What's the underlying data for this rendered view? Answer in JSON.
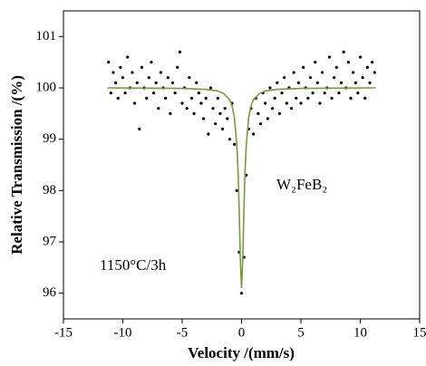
{
  "chart_data": {
    "type": "scatter",
    "xlabel": "Velocity /(mm/s)",
    "ylabel": "Relative Transmission /(%)",
    "xlim": [
      -15,
      15
    ],
    "xticks": [
      -15,
      -10,
      -5,
      0,
      5,
      10,
      15
    ],
    "ylim": [
      95.5,
      101.5
    ],
    "yticks": [
      96,
      97,
      98,
      99,
      100,
      101
    ],
    "annotations": [
      "W₂FeB₂",
      "1150°C/3h"
    ],
    "series": [
      {
        "mode": "markers",
        "color": "#000000",
        "x": [
          -11.2,
          -11,
          -10.8,
          -10.6,
          -10.4,
          -10.2,
          -10,
          -9.8,
          -9.6,
          -9.4,
          -9.2,
          -9,
          -8.8,
          -8.6,
          -8.4,
          -8.2,
          -8,
          -7.8,
          -7.6,
          -7.4,
          -7.2,
          -7,
          -6.8,
          -6.6,
          -6.4,
          -6.2,
          -6,
          -5.8,
          -5.6,
          -5.4,
          -5.2,
          -5,
          -4.8,
          -4.6,
          -4.4,
          -4.2,
          -4,
          -3.8,
          -3.6,
          -3.4,
          -3.2,
          -3,
          -2.8,
          -2.6,
          -2.4,
          -2.2,
          -2,
          -1.8,
          -1.6,
          -1.4,
          -1.2,
          -1,
          -0.8,
          -0.6,
          -0.4,
          -0.2,
          0,
          0.2,
          0.4,
          0.6,
          0.8,
          1,
          1.2,
          1.4,
          1.6,
          1.8,
          2,
          2.2,
          2.4,
          2.6,
          2.8,
          3,
          3.2,
          3.4,
          3.6,
          3.8,
          4,
          4.2,
          4.4,
          4.6,
          4.8,
          5,
          5.2,
          5.4,
          5.6,
          5.8,
          6,
          6.2,
          6.4,
          6.6,
          6.8,
          7,
          7.2,
          7.4,
          7.6,
          7.8,
          8,
          8.2,
          8.4,
          8.6,
          8.8,
          9,
          9.2,
          9.4,
          9.6,
          9.8,
          10,
          10.2,
          10.4,
          10.6,
          10.8,
          11,
          11.2
        ],
        "values": [
          100.5,
          99.9,
          100.3,
          100.1,
          99.8,
          100.4,
          100.2,
          99.9,
          100.6,
          100.0,
          100.3,
          99.7,
          100.1,
          99.2,
          100.4,
          100.0,
          99.8,
          100.2,
          100.5,
          99.9,
          100.1,
          99.6,
          100.3,
          100.0,
          99.8,
          100.2,
          99.5,
          100.1,
          99.9,
          100.4,
          100.7,
          99.7,
          100.0,
          99.6,
          100.2,
          99.8,
          99.5,
          100.1,
          99.9,
          99.7,
          99.4,
          99.8,
          99.1,
          100.0,
          99.6,
          99.3,
          99.8,
          99.5,
          99.2,
          99.6,
          99.4,
          99.0,
          99.7,
          98.9,
          98.0,
          96.8,
          96.0,
          96.7,
          98.3,
          99.2,
          99.6,
          99.1,
          99.8,
          99.5,
          99.3,
          99.9,
          99.7,
          99.4,
          100.0,
          99.6,
          99.8,
          100.1,
          99.5,
          99.9,
          100.2,
          99.7,
          100.0,
          99.6,
          100.3,
          99.8,
          100.1,
          99.7,
          100.4,
          100.0,
          99.8,
          100.2,
          99.9,
          100.5,
          100.1,
          99.7,
          100.3,
          99.9,
          100.0,
          100.6,
          99.8,
          100.2,
          100.4,
          99.9,
          100.1,
          100.7,
          100.0,
          100.5,
          99.8,
          100.3,
          100.1,
          99.9,
          100.6,
          100.2,
          99.8,
          100.4,
          100.1,
          100.5,
          100.3
        ]
      },
      {
        "mode": "line",
        "color": "#7a9a3a",
        "x": [
          -11.3,
          -5,
          -3,
          -2,
          -1.5,
          -1,
          -0.8,
          -0.6,
          -0.4,
          -0.3,
          -0.2,
          -0.1,
          0,
          0.1,
          0.2,
          0.3,
          0.4,
          0.6,
          0.8,
          1,
          1.5,
          2,
          3,
          5,
          11.3
        ],
        "values": [
          100.0,
          99.99,
          99.97,
          99.94,
          99.89,
          99.77,
          99.65,
          99.42,
          98.9,
          98.4,
          97.62,
          96.64,
          96.1,
          96.64,
          97.62,
          98.4,
          98.9,
          99.42,
          99.65,
          99.77,
          99.89,
          99.94,
          99.97,
          99.99,
          100.0
        ]
      }
    ]
  }
}
